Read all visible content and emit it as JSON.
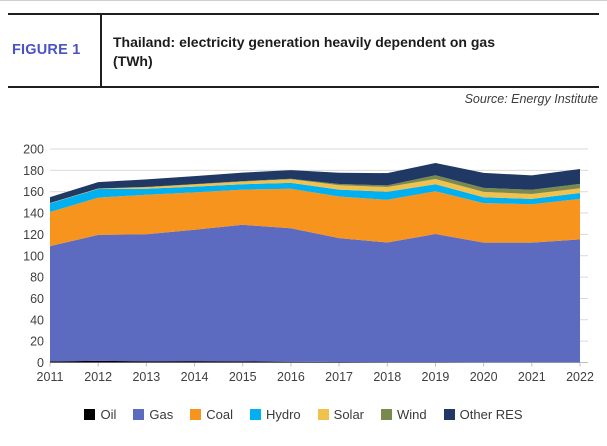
{
  "header": {
    "figure_label": "FIGURE 1",
    "title": "Thailand: electricity generation heavily dependent on gas",
    "unit": "(TWh)",
    "source": "Source: Energy Institute"
  },
  "colors": {
    "figure_label_blue": "#4A53C4",
    "rule_black": "#1F1F1F",
    "gridline": "#D9D9D9",
    "axis_line": "#BFBFBF",
    "axis_text": "#404040"
  },
  "chart_data": {
    "type": "area",
    "stacked": true,
    "title": "Thailand: electricity generation heavily dependent on gas (TWh)",
    "xlabel": "",
    "ylabel": "TWh",
    "ylim": [
      0,
      200
    ],
    "ytick_step": 20,
    "grid": true,
    "legend_position": "bottom",
    "x": [
      2011,
      2012,
      2013,
      2014,
      2015,
      2016,
      2017,
      2018,
      2019,
      2020,
      2021,
      2022
    ],
    "series": [
      {
        "name": "Oil",
        "color": "#000000",
        "values": [
          1.0,
          1.5,
          1.2,
          1.3,
          1.0,
          0.7,
          0.5,
          0.4,
          0.4,
          0.3,
          0.3,
          0.3
        ]
      },
      {
        "name": "Gas",
        "color": "#5C6BC0",
        "values": [
          108,
          118,
          119,
          123,
          128,
          125,
          116,
          112,
          120,
          112,
          112,
          115
        ]
      },
      {
        "name": "Coal",
        "color": "#F7941D",
        "values": [
          32,
          35,
          37,
          35,
          33,
          37,
          39,
          40,
          40,
          37,
          36,
          38
        ]
      },
      {
        "name": "Hydro",
        "color": "#00B0F0",
        "values": [
          8.0,
          8.0,
          5.5,
          5.5,
          5.0,
          5.5,
          6.5,
          7.5,
          6.5,
          5.5,
          5.0,
          5.5
        ]
      },
      {
        "name": "Solar",
        "color": "#F1C14E",
        "values": [
          0.3,
          0.4,
          1.5,
          2.0,
          2.5,
          3.5,
          4.0,
          4.5,
          5.0,
          5.0,
          4.5,
          4.5
        ]
      },
      {
        "name": "Wind",
        "color": "#7A8A4E",
        "values": [
          0.1,
          0.1,
          0.3,
          0.3,
          0.4,
          0.5,
          1.2,
          1.5,
          3.5,
          3.8,
          4.0,
          4.0
        ]
      },
      {
        "name": "Other RES",
        "color": "#1F3864",
        "values": [
          5.5,
          6.0,
          7.0,
          7.5,
          8.0,
          8.0,
          10.5,
          11.5,
          11.5,
          14.0,
          13.5,
          14.0
        ]
      }
    ]
  }
}
